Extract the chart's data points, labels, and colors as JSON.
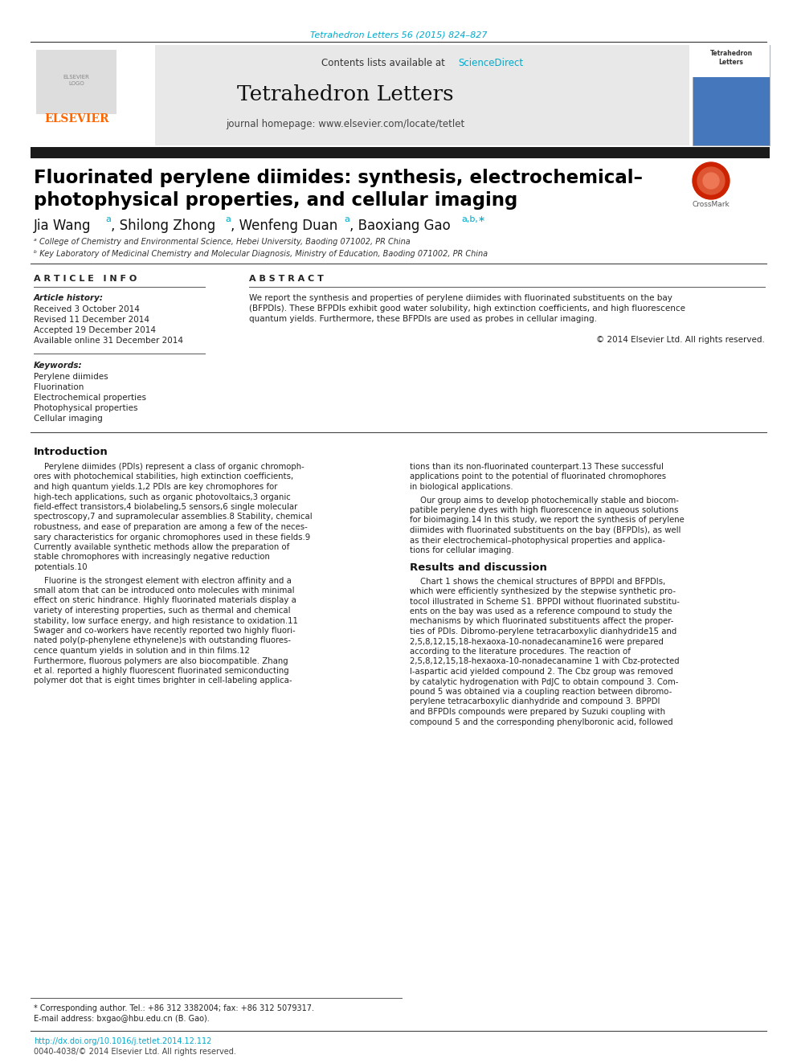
{
  "page_bg": "#ffffff",
  "top_citation": "Tetrahedron Letters 56 (2015) 824–827",
  "top_citation_color": "#00aacc",
  "header_bg": "#e8e8e8",
  "header_contents": "Contents lists available at",
  "header_sciencedirect": "ScienceDirect",
  "header_sciencedirect_color": "#00aacc",
  "journal_title": "Tetrahedron Letters",
  "journal_homepage": "journal homepage: www.elsevier.com/locate/tetlet",
  "black_bar_color": "#1a1a1a",
  "article_title_line1": "Fluorinated perylene diimides: synthesis, electrochemical–",
  "article_title_line2": "photophysical properties, and cellular imaging",
  "title_color": "#000000",
  "affil_a": "ᵃ College of Chemistry and Environmental Science, Hebei University, Baoding 071002, PR China",
  "affil_b": "ᵇ Key Laboratory of Medicinal Chemistry and Molecular Diagnosis, Ministry of Education, Baoding 071002, PR China",
  "section_article_info": "A R T I C L E   I N F O",
  "section_abstract": "A B S T R A C T",
  "article_history_label": "Article history:",
  "received": "Received 3 October 2014",
  "revised": "Revised 11 December 2014",
  "accepted": "Accepted 19 December 2014",
  "available": "Available online 31 December 2014",
  "keywords_label": "Keywords:",
  "keywords": [
    "Perylene diimides",
    "Fluorination",
    "Electrochemical properties",
    "Photophysical properties",
    "Cellular imaging"
  ],
  "abstract_lines": [
    "We report the synthesis and properties of perylene diimides with fluorinated substituents on the bay",
    "(BFPDIs). These BFPDIs exhibit good water solubility, high extinction coefficients, and high fluorescence",
    "quantum yields. Furthermore, these BFPDIs are used as probes in cellular imaging."
  ],
  "copyright": "© 2014 Elsevier Ltd. All rights reserved.",
  "intro_heading": "Introduction",
  "intro_left_lines": [
    "    Perylene diimides (PDIs) represent a class of organic chromoph-",
    "ores with photochemical stabilities, high extinction coefficients,",
    "and high quantum yields.1,2 PDIs are key chromophores for",
    "high-tech applications, such as organic photovoltaics,3 organic",
    "field-effect transistors,4 biolabeling,5 sensors,6 single molecular",
    "spectroscopy,7 and supramolecular assemblies.8 Stability, chemical",
    "robustness, and ease of preparation are among a few of the neces-",
    "sary characteristics for organic chromophores used in these fields.9",
    "Currently available synthetic methods allow the preparation of",
    "stable chromophores with increasingly negative reduction",
    "potentials.10"
  ],
  "intro_left2_lines": [
    "    Fluorine is the strongest element with electron affinity and a",
    "small atom that can be introduced onto molecules with minimal",
    "effect on steric hindrance. Highly fluorinated materials display a",
    "variety of interesting properties, such as thermal and chemical",
    "stability, low surface energy, and high resistance to oxidation.11",
    "Swager and co-workers have recently reported two highly fluori-",
    "nated poly(p-phenylene ethynelene)s with outstanding fluores-",
    "cence quantum yields in solution and in thin films.12",
    "Furthermore, fluorous polymers are also biocompatible. Zhang",
    "et al. reported a highly fluorescent fluorinated semiconducting",
    "polymer dot that is eight times brighter in cell-labeling applica-"
  ],
  "intro_right_lines": [
    "tions than its non-fluorinated counterpart.13 These successful",
    "applications point to the potential of fluorinated chromophores",
    "in biological applications."
  ],
  "intro_right2_lines": [
    "    Our group aims to develop photochemically stable and biocom-",
    "patible perylene dyes with high fluorescence in aqueous solutions",
    "for bioimaging.14 In this study, we report the synthesis of perylene",
    "diimides with fluorinated substituents on the bay (BFPDIs), as well",
    "as their electrochemical–photophysical properties and applica-",
    "tions for cellular imaging."
  ],
  "results_heading": "Results and discussion",
  "results_lines": [
    "    Chart 1 shows the chemical structures of BPPDI and BFPDIs,",
    "which were efficiently synthesized by the stepwise synthetic pro-",
    "tocol illustrated in Scheme S1. BPPDI without fluorinated substitu-",
    "ents on the bay was used as a reference compound to study the",
    "mechanisms by which fluorinated substituents affect the proper-",
    "ties of PDIs. Dibromo-perylene tetracarboxylic dianhydride15 and",
    "2,5,8,12,15,18-hexaoxa-10-nonadecanamine16 were prepared",
    "according to the literature procedures. The reaction of",
    "2,5,8,12,15,18-hexaoxa-10-nonadecanamine 1 with Cbz-protected",
    "l-aspartic acid yielded compound 2. The Cbz group was removed",
    "by catalytic hydrogenation with PdJC to obtain compound 3. Com-",
    "pound 5 was obtained via a coupling reaction between dibromo-",
    "perylene tetracarboxylic dianhydride and compound 3. BPPDI",
    "and BFPDIs compounds were prepared by Suzuki coupling with",
    "compound 5 and the corresponding phenylboronic acid, followed"
  ],
  "footnote_star": "* Corresponding author. Tel.: +86 312 3382004; fax: +86 312 5079317.",
  "footnote_email": "E-mail address: bxgao@hbu.edu.cn (B. Gao).",
  "doi_text": "http://dx.doi.org/10.1016/j.tetlet.2014.12.112",
  "issn_text": "0040-4038/© 2014 Elsevier Ltd. All rights reserved.",
  "elsevier_color": "#ff6600",
  "link_color": "#00aacc"
}
